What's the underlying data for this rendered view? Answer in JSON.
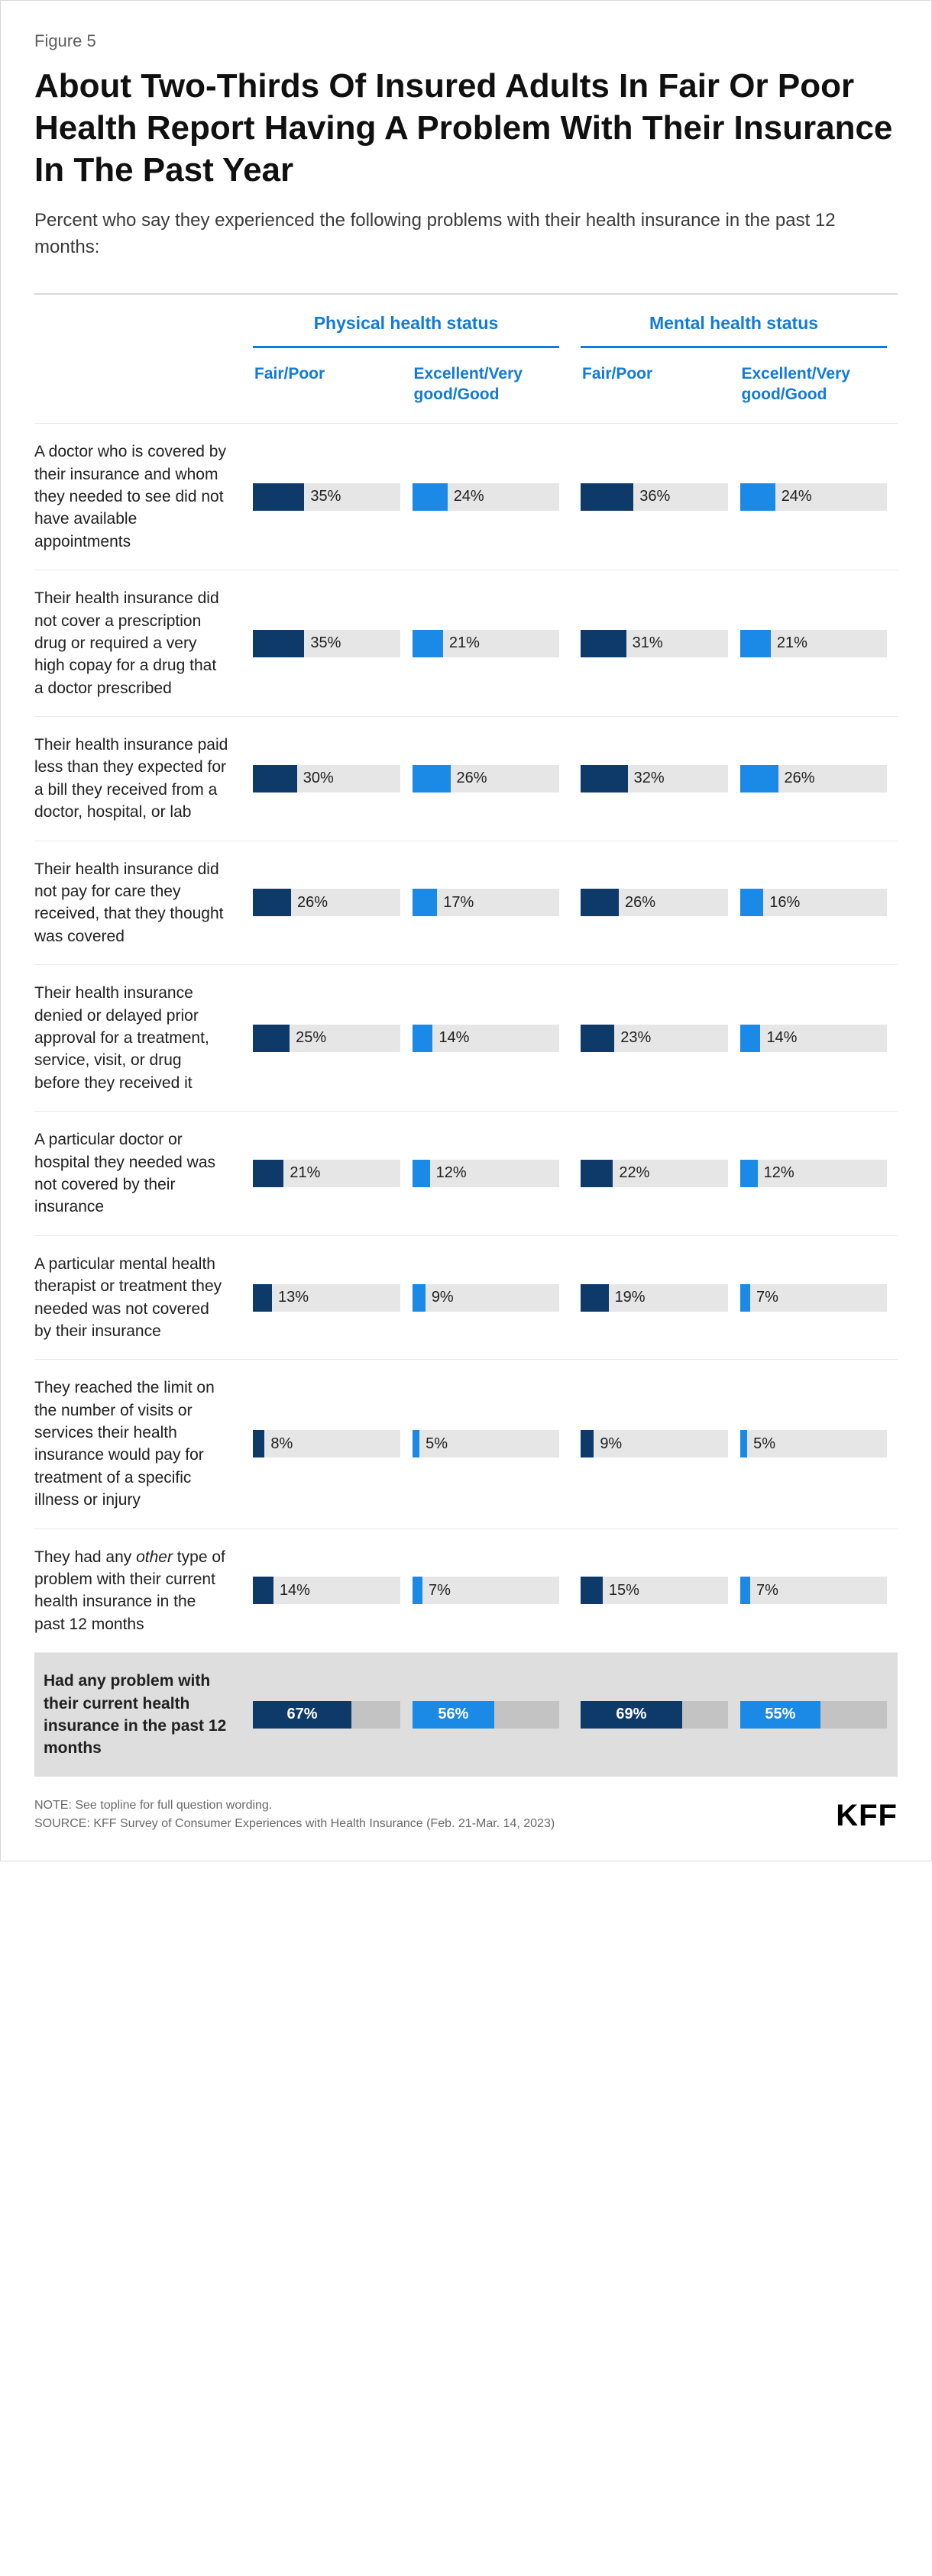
{
  "figure_label": "Figure 5",
  "title": "About Two-Thirds Of Insured Adults In Fair Or Poor Health Report Having A Problem With Their Insurance In The Past Year",
  "subtitle": "Percent who say they experienced the following problems with their health insurance in the past 12 months:",
  "groups": [
    {
      "title": "Physical health status",
      "sub": [
        "Fair/Poor",
        "Excellent/Very good/Good"
      ]
    },
    {
      "title": "Mental health status",
      "sub": [
        "Fair/Poor",
        "Excellent/Very good/Good"
      ]
    }
  ],
  "bar_colors": {
    "fair_poor": "#0e3a6a",
    "excellent": "#1b8ae6",
    "track": "#e6e6e6",
    "track_summary": "#c3c3c3"
  },
  "bar_max_percent": 100,
  "rows": [
    {
      "label_html": "A doctor who is covered by their insurance and whom they needed to see did not have available appointments",
      "values": [
        35,
        24,
        36,
        24
      ],
      "summary": false
    },
    {
      "label_html": "Their health insurance did not cover a prescription drug or required a very high copay for a drug that a doctor prescribed",
      "values": [
        35,
        21,
        31,
        21
      ],
      "summary": false
    },
    {
      "label_html": "Their health insurance paid less than they expected for a bill they received from a doctor, hospital, or lab",
      "values": [
        30,
        26,
        32,
        26
      ],
      "summary": false
    },
    {
      "label_html": "Their health insurance did not pay for care they received, that they thought was covered",
      "values": [
        26,
        17,
        26,
        16
      ],
      "summary": false
    },
    {
      "label_html": "Their health insurance denied or delayed prior approval for a treatment, service, visit, or drug before they received it",
      "values": [
        25,
        14,
        23,
        14
      ],
      "summary": false
    },
    {
      "label_html": "A particular doctor or hospital they needed was not covered by their insurance",
      "values": [
        21,
        12,
        22,
        12
      ],
      "summary": false
    },
    {
      "label_html": "A particular mental health therapist or treatment they needed was not covered by their insurance",
      "values": [
        13,
        9,
        19,
        7
      ],
      "summary": false
    },
    {
      "label_html": "They reached the limit on the number of visits or services their health insurance would pay for treatment of a specific illness or injury",
      "values": [
        8,
        5,
        9,
        5
      ],
      "summary": false
    },
    {
      "label_html": "They had any <em class=\"italic\">other</em> type of problem with their current health insurance in the past 12 months",
      "values": [
        14,
        7,
        15,
        7
      ],
      "summary": false
    },
    {
      "label_html": "Had any problem with their current health insurance in the past 12 months",
      "values": [
        67,
        56,
        69,
        55
      ],
      "summary": true
    }
  ],
  "footer": {
    "note": "NOTE: See topline for full question wording.",
    "source": "SOURCE: KFF Survey of Consumer Experiences with Health Insurance (Feb. 21-Mar. 14, 2023)"
  },
  "logo_text": "KFF"
}
